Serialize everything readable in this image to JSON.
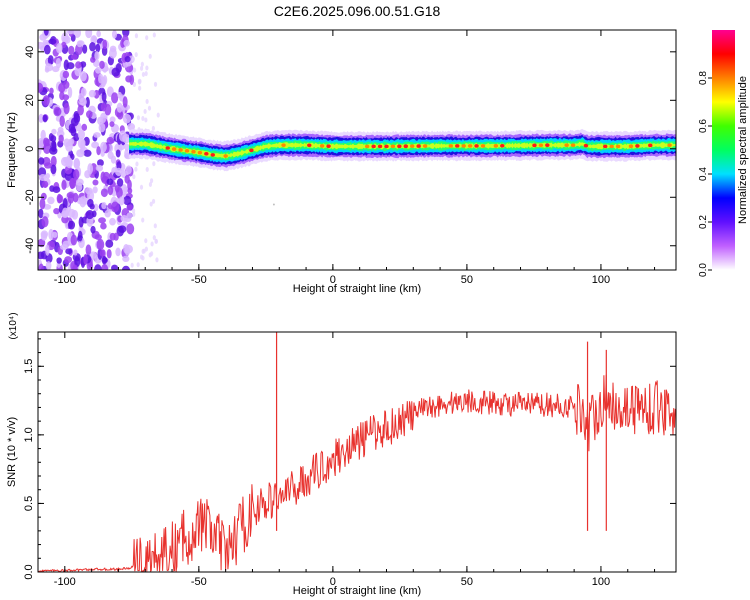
{
  "title": "C2E6.2025.096.00.51.G18",
  "chart_data": [
    {
      "type": "heatmap",
      "xlabel": "Height of straight line (km)",
      "ylabel": "Frequency (Hz)",
      "xlim": [
        -110,
        128
      ],
      "ylim": [
        -50,
        49
      ],
      "x_ticks": [
        -100,
        -50,
        0,
        50,
        100
      ],
      "y_ticks": [
        -40,
        -20,
        0,
        20,
        40
      ],
      "colorbar": {
        "label": "Normalized spectral amplitude",
        "range": [
          0,
          1
        ],
        "ticks": [
          "0.0",
          "0.2",
          "0.4",
          "0.6",
          "0.8"
        ],
        "colors": [
          "#ffffff",
          "#c060ff",
          "#6010ff",
          "#0000ff",
          "#00e0ff",
          "#00ff60",
          "#40ff00",
          "#ffff00",
          "#ff8000",
          "#ff0000",
          "#ff0090"
        ]
      },
      "noise_region_x": [
        -110,
        -75
      ],
      "signal_track": {
        "x": [
          -75,
          -70,
          -60,
          -50,
          -45,
          -40,
          -35,
          -30,
          -25,
          -20,
          -10,
          0,
          20,
          40,
          60,
          80,
          90,
          93,
          95,
          100,
          110,
          120,
          128
        ],
        "freq_hz": [
          2,
          2,
          0,
          -1.5,
          -2.5,
          -3,
          -2,
          -0.5,
          1,
          1.5,
          1.5,
          1,
          1,
          1.2,
          1.2,
          1.5,
          1.5,
          2,
          1,
          1,
          1,
          1.5,
          1.5
        ]
      }
    },
    {
      "type": "line",
      "xlabel": "Height of straight line (km)",
      "ylabel": "SNR (10 * v/v)",
      "y_multiplier": "(x10⁴)",
      "xlim": [
        -110,
        128
      ],
      "ylim": [
        0,
        1.75
      ],
      "x_ticks": [
        -100,
        -50,
        0,
        50,
        100
      ],
      "y_ticks": [
        "0.0",
        "0.5",
        "1.0",
        "1.5"
      ],
      "series": [
        {
          "color": "#e8322e",
          "x": [
            -110,
            -100,
            -90,
            -80,
            -75,
            -70,
            -65,
            -60,
            -55,
            -50,
            -45,
            -40,
            -35,
            -30,
            -25,
            -20,
            -15,
            -10,
            -5,
            0,
            5,
            10,
            15,
            20,
            25,
            30,
            35,
            40,
            50,
            60,
            70,
            80,
            90,
            93,
            95,
            100,
            110,
            120,
            128
          ],
          "y": [
            0.01,
            0.01,
            0.02,
            0.02,
            0.03,
            0.05,
            0.08,
            0.15,
            0.25,
            0.35,
            0.3,
            0.12,
            0.3,
            0.45,
            0.5,
            0.55,
            0.6,
            0.68,
            0.75,
            0.82,
            0.9,
            0.95,
            1.02,
            1.05,
            1.1,
            1.15,
            1.2,
            1.22,
            1.25,
            1.23,
            1.22,
            1.22,
            1.2,
            1.2,
            1.05,
            1.25,
            1.2,
            1.2,
            1.18
          ]
        }
      ],
      "spikes": [
        {
          "x": -21,
          "y": 1.75
        },
        {
          "x": 95,
          "y": 1.68
        },
        {
          "x": 102,
          "y": 1.62
        }
      ]
    }
  ]
}
